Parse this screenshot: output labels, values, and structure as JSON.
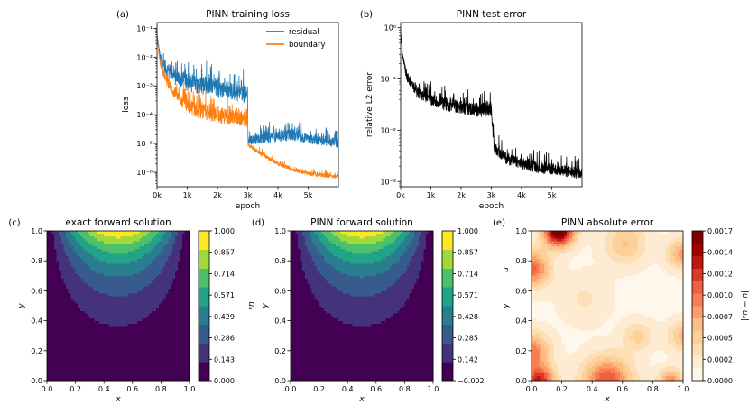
{
  "chart_data": [
    {
      "panel": "(a)",
      "type": "line",
      "title": "PINN training loss",
      "xlabel": "epoch",
      "ylabel": "loss",
      "xlim": [
        0,
        6000
      ],
      "ylim_log10": [
        -6.5,
        -0.8
      ],
      "yscale": "log",
      "xticks": [
        "0k",
        "1k",
        "2k",
        "3k",
        "4k",
        "5k"
      ],
      "yticks": [
        "10⁻⁶",
        "10⁻⁵",
        "10⁻⁴",
        "10⁻³",
        "10⁻²",
        "10⁻¹"
      ],
      "series": [
        {
          "name": "residual",
          "color": "#1f77b4",
          "x": [
            0,
            100,
            300,
            600,
            1000,
            1500,
            2000,
            2500,
            2990,
            3010,
            3500,
            4000,
            4500,
            5000,
            5500,
            6000
          ],
          "log10_y": [
            -1.2,
            -2.0,
            -2.4,
            -2.7,
            -2.9,
            -3.0,
            -3.1,
            -3.2,
            -3.3,
            -4.9,
            -4.8,
            -4.75,
            -4.7,
            -4.85,
            -4.9,
            -5.0
          ],
          "noise": [
            0,
            0.3,
            0.5,
            0.5,
            0.55,
            0.55,
            0.55,
            0.55,
            0.55,
            0.25,
            0.35,
            0.35,
            0.35,
            0.3,
            0.3,
            0.3
          ]
        },
        {
          "name": "boundary",
          "color": "#ff7f0e",
          "x": [
            0,
            100,
            300,
            600,
            1000,
            1500,
            2000,
            2500,
            2990,
            3010,
            3500,
            4000,
            4500,
            5000,
            5500,
            6000
          ],
          "log10_y": [
            -1.3,
            -2.2,
            -2.8,
            -3.3,
            -3.7,
            -3.9,
            -4.0,
            -4.1,
            -4.15,
            -5.05,
            -5.4,
            -5.7,
            -5.9,
            -6.05,
            -6.1,
            -6.15
          ],
          "noise": [
            0,
            0.2,
            0.3,
            0.35,
            0.45,
            0.5,
            0.5,
            0.5,
            0.5,
            0.1,
            0.12,
            0.12,
            0.12,
            0.12,
            0.12,
            0.12
          ]
        }
      ]
    },
    {
      "panel": "(b)",
      "type": "line",
      "title": "PINN test error",
      "xlabel": "epoch",
      "ylabel": "relative L2 error",
      "xlim": [
        0,
        6000
      ],
      "ylim_log10": [
        -3.1,
        0.1
      ],
      "yscale": "log",
      "xticks": [
        "0k",
        "1k",
        "2k",
        "3k",
        "4k",
        "5k"
      ],
      "yticks": [
        "10⁻³",
        "10⁻²",
        "10⁻¹",
        "10⁰"
      ],
      "series": [
        {
          "name": "test error",
          "color": "#000000",
          "x": [
            0,
            50,
            200,
            500,
            1000,
            1500,
            2000,
            2500,
            2990,
            3100,
            3500,
            4000,
            4500,
            5000,
            5500,
            6000
          ],
          "log10_y": [
            -0.1,
            -0.45,
            -0.95,
            -1.25,
            -1.4,
            -1.5,
            -1.55,
            -1.6,
            -1.6,
            -2.35,
            -2.55,
            -2.65,
            -2.72,
            -2.75,
            -2.8,
            -2.85
          ],
          "noise": [
            0,
            0.15,
            0.15,
            0.18,
            0.2,
            0.22,
            0.22,
            0.25,
            0.25,
            0.18,
            0.2,
            0.2,
            0.2,
            0.2,
            0.2,
            0.2
          ]
        }
      ]
    },
    {
      "panel": "(c)",
      "type": "heatmap",
      "title": "exact forward solution",
      "xlabel": "x",
      "ylabel": "y",
      "xlim": [
        0,
        1
      ],
      "ylim": [
        0,
        1
      ],
      "xticks": [
        "0.0",
        "0.2",
        "0.4",
        "0.6",
        "0.8",
        "1.0"
      ],
      "yticks": [
        "0.0",
        "0.2",
        "0.4",
        "0.6",
        "0.8",
        "1.0"
      ],
      "colorbar_label": "uₐ",
      "colormap": "viridis",
      "levels": 8,
      "colorbar_ticks": [
        "0.000",
        "0.143",
        "0.286",
        "0.429",
        "0.571",
        "0.714",
        "0.857",
        "1.000"
      ]
    },
    {
      "panel": "(d)",
      "type": "heatmap",
      "title": "PINN forward solution",
      "xlabel": "x",
      "ylabel": "y",
      "xlim": [
        0,
        1
      ],
      "ylim": [
        0,
        1
      ],
      "xticks": [
        "0.0",
        "0.2",
        "0.4",
        "0.6",
        "0.8",
        "1.0"
      ],
      "yticks": [
        "0.0",
        "0.2",
        "0.4",
        "0.6",
        "0.8",
        "1.0"
      ],
      "colorbar_label": "",
      "colormap": "viridis",
      "levels": 8,
      "colorbar_ticks": [
        "−0.002",
        "0.142",
        "0.285",
        "0.428",
        "0.571",
        "0.714",
        "0.857",
        "1.000"
      ]
    },
    {
      "panel": "(e)",
      "type": "heatmap",
      "title": "PINN absolute error",
      "xlabel": "x",
      "ylabel": "y",
      "ylabel2": "u",
      "xlim": [
        0,
        1
      ],
      "ylim": [
        0,
        1
      ],
      "xticks": [
        "0.0",
        "0.2",
        "0.4",
        "0.6",
        "0.8",
        "1.0"
      ],
      "yticks": [
        "0.0",
        "0.2",
        "0.4",
        "0.6",
        "0.8",
        "1.0"
      ],
      "colorbar_label": "|u − uₐ|",
      "colormap": "OrRd",
      "levels": 12,
      "colorbar_ticks": [
        "0.0000",
        "0.0002",
        "0.0005",
        "0.0007",
        "0.0010",
        "0.0012",
        "0.0014",
        "0.0017"
      ]
    }
  ]
}
